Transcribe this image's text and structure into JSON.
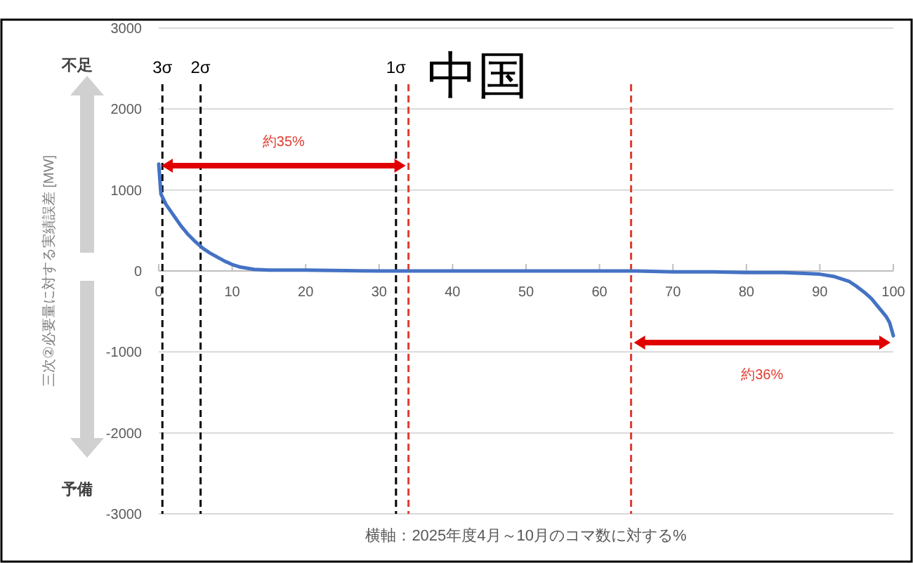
{
  "chart_data": {
    "type": "line",
    "title": "中国",
    "ylabel": "三次②必要量に対する実績誤差 [MW]",
    "xlabel": "横軸：2025年度4月～10月のコマ数に対する%",
    "x": [
      0,
      0.3,
      1,
      2,
      3,
      4,
      5,
      6,
      7,
      8,
      9,
      10,
      11,
      13,
      15,
      20,
      30,
      40,
      50,
      60,
      65,
      70,
      75,
      80,
      85,
      88,
      90,
      92,
      94,
      95,
      96,
      97,
      98,
      99,
      99.5,
      100
    ],
    "series": [
      {
        "color": "#4472c4",
        "values": [
          1320,
          950,
          820,
          690,
          560,
          450,
          360,
          280,
          220,
          170,
          120,
          80,
          50,
          20,
          10,
          10,
          0,
          0,
          0,
          0,
          0,
          -10,
          -10,
          -20,
          -20,
          -30,
          -40,
          -70,
          -130,
          -190,
          -260,
          -340,
          -450,
          -560,
          -640,
          -800
        ]
      }
    ],
    "xlim": [
      0,
      100
    ],
    "xticks": [
      0,
      10,
      20,
      30,
      40,
      50,
      60,
      70,
      80,
      90,
      100
    ],
    "ylim": [
      -3000,
      3000
    ],
    "yticks": [
      -3000,
      -2000,
      -1000,
      0,
      1000,
      2000,
      3000
    ],
    "grid": "y",
    "marker": "none",
    "line_style": "solid",
    "ref_lines": [
      {
        "axis": "x",
        "value": 0.5,
        "label": "3σ",
        "color": "#000000",
        "line_style": "dashed"
      },
      {
        "axis": "x",
        "value": 5.7,
        "label": "2σ",
        "color": "#000000",
        "line_style": "dashed"
      },
      {
        "axis": "x",
        "value": 32.3,
        "label": "1σ",
        "color": "#000000",
        "line_style": "dashed"
      },
      {
        "axis": "x",
        "value": 34,
        "color": "#e03c31",
        "line_style": "dashed"
      },
      {
        "axis": "x",
        "value": 64.3,
        "color": "#e03c31",
        "line_style": "dashed"
      }
    ],
    "annotations": [
      "不足",
      "予備",
      "約35%",
      "約36%"
    ]
  }
}
